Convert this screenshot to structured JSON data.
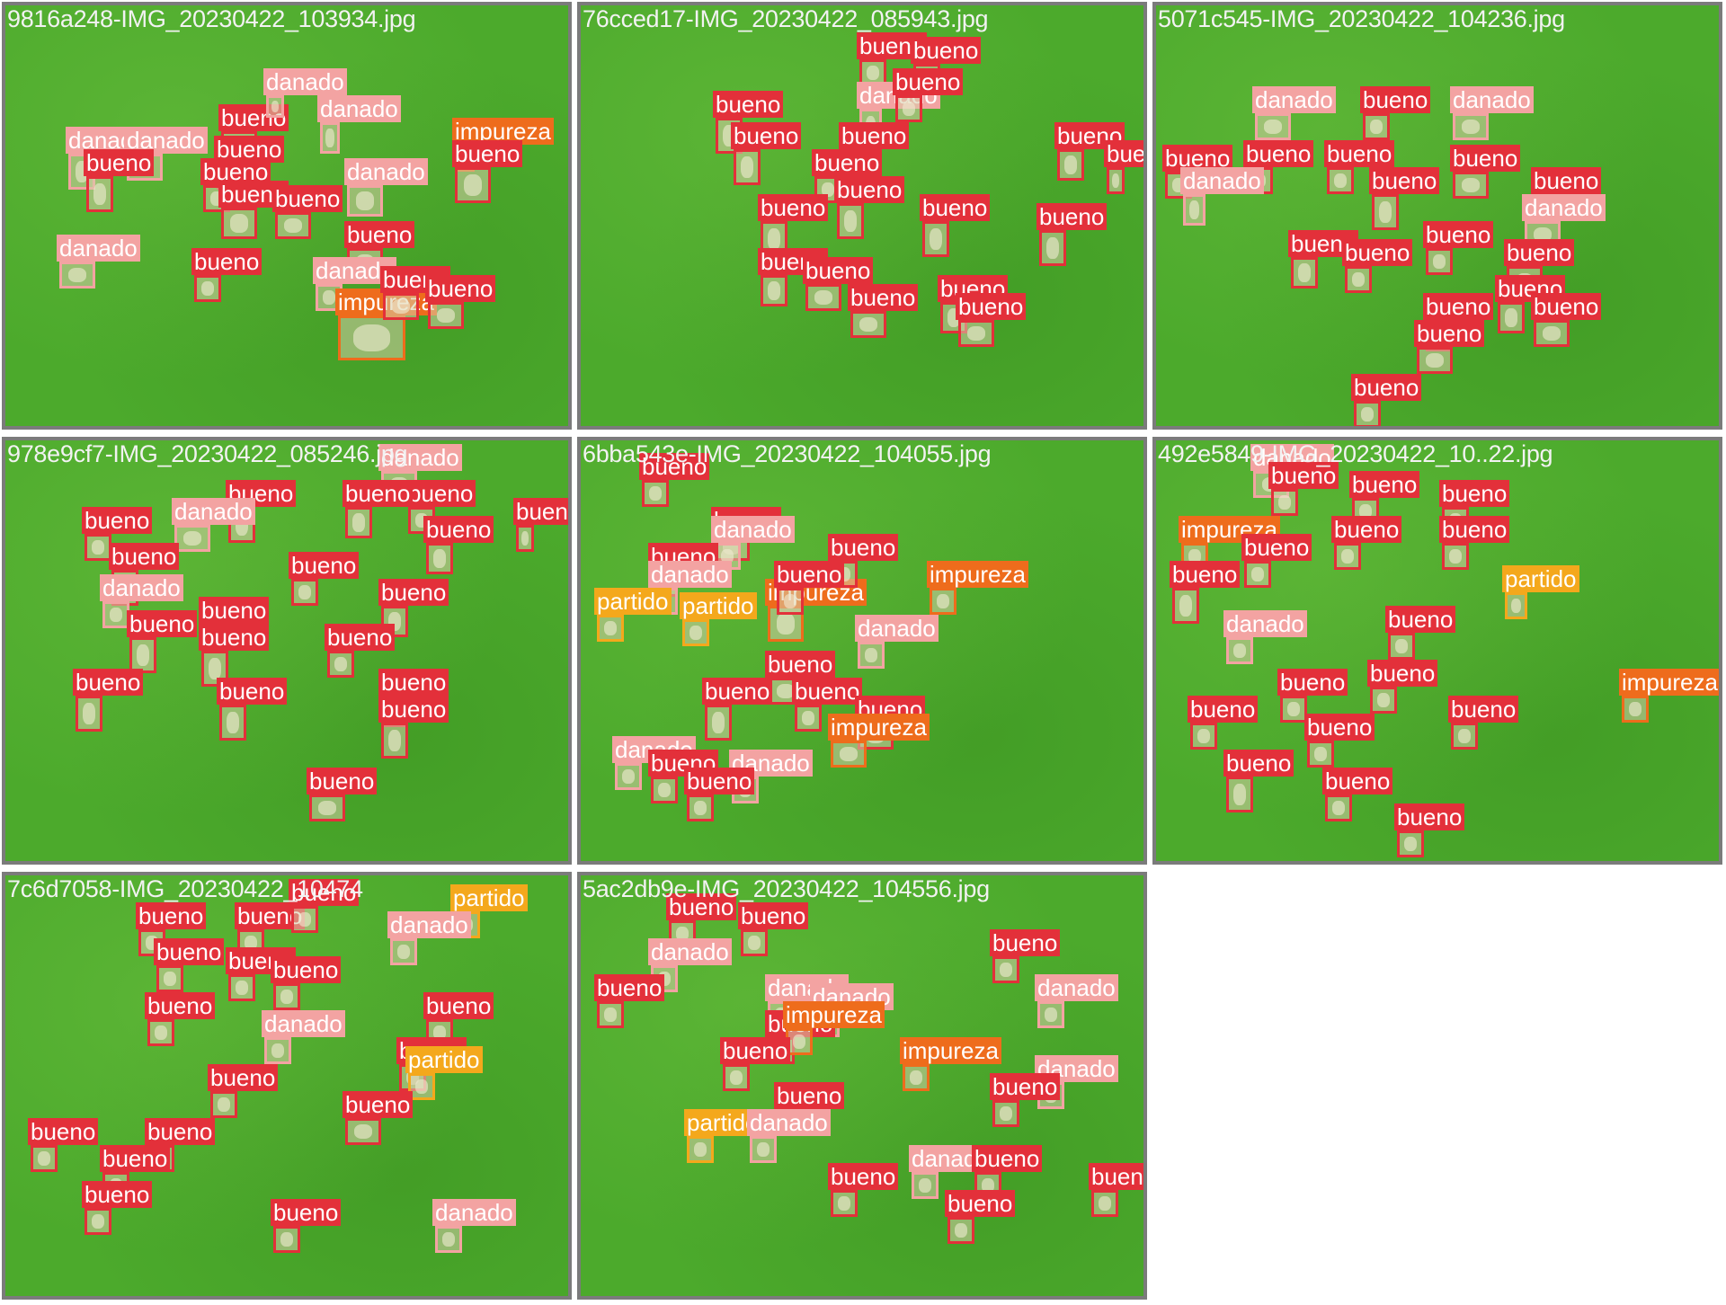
{
  "class_colors": {
    "bueno": "#e3303a",
    "danado": "#f3a3a2",
    "impureza": "#ee6c1c",
    "partido": "#f4a81c"
  },
  "tiles": [
    {
      "title": "9816a248-IMG_20230422_103934.jpg",
      "detections": [
        {
          "label": "danado",
          "cls": "danado"
        },
        {
          "label": "danado",
          "cls": "danado"
        },
        {
          "label": "bueno",
          "cls": "bueno"
        },
        {
          "label": "danado",
          "cls": "danado"
        },
        {
          "label": "danado",
          "cls": "danado"
        },
        {
          "label": "impureza",
          "cls": "impureza"
        },
        {
          "label": "bueno",
          "cls": "bueno"
        },
        {
          "label": "bueno",
          "cls": "bueno"
        },
        {
          "label": "bueno",
          "cls": "bueno"
        },
        {
          "label": "danado",
          "cls": "danado"
        },
        {
          "label": "bueno",
          "cls": "bueno"
        },
        {
          "label": "bueno",
          "cls": "bueno"
        },
        {
          "label": "bueno",
          "cls": "bueno"
        },
        {
          "label": "danado",
          "cls": "danado"
        },
        {
          "label": "bueno",
          "cls": "bueno"
        },
        {
          "label": "bueno",
          "cls": "bueno"
        },
        {
          "label": "danado",
          "cls": "danado"
        },
        {
          "label": "impureza",
          "cls": "impureza"
        },
        {
          "label": "bueno",
          "cls": "bueno"
        },
        {
          "label": "bueno",
          "cls": "bueno"
        }
      ]
    },
    {
      "title": "76cced17-IMG_20230422_085943.jpg",
      "detections": [
        {
          "label": "bueno",
          "cls": "bueno"
        },
        {
          "label": "bueno",
          "cls": "bueno"
        },
        {
          "label": "danado",
          "cls": "danado"
        },
        {
          "label": "bueno",
          "cls": "bueno"
        },
        {
          "label": "bueno",
          "cls": "bueno"
        },
        {
          "label": "bueno",
          "cls": "bueno"
        },
        {
          "label": "bueno",
          "cls": "bueno"
        },
        {
          "label": "bueno",
          "cls": "bueno"
        },
        {
          "label": "bueno",
          "cls": "bueno"
        },
        {
          "label": "bueno",
          "cls": "bueno"
        },
        {
          "label": "bueno",
          "cls": "bueno"
        },
        {
          "label": "bueno",
          "cls": "bueno"
        },
        {
          "label": "bueno",
          "cls": "bueno"
        },
        {
          "label": "bueno",
          "cls": "bueno"
        },
        {
          "label": "bueno",
          "cls": "bueno"
        },
        {
          "label": "bueno",
          "cls": "bueno"
        },
        {
          "label": "bueno",
          "cls": "bueno"
        },
        {
          "label": "bueno",
          "cls": "bueno"
        },
        {
          "label": "bueno",
          "cls": "bueno"
        }
      ]
    },
    {
      "title": "5071c545-IMG_20230422_104236.jpg",
      "detections": [
        {
          "label": "danado",
          "cls": "danado"
        },
        {
          "label": "bueno",
          "cls": "bueno"
        },
        {
          "label": "danado",
          "cls": "danado"
        },
        {
          "label": "bueno",
          "cls": "bueno"
        },
        {
          "label": "bueno",
          "cls": "bueno"
        },
        {
          "label": "bueno",
          "cls": "bueno"
        },
        {
          "label": "bueno",
          "cls": "bueno"
        },
        {
          "label": "bueno",
          "cls": "bueno"
        },
        {
          "label": "bueno",
          "cls": "bueno"
        },
        {
          "label": "danado",
          "cls": "danado"
        },
        {
          "label": "danado",
          "cls": "danado"
        },
        {
          "label": "bueno",
          "cls": "bueno"
        },
        {
          "label": "bueno",
          "cls": "bueno"
        },
        {
          "label": "bueno",
          "cls": "bueno"
        },
        {
          "label": "bueno",
          "cls": "bueno"
        },
        {
          "label": "bueno",
          "cls": "bueno"
        },
        {
          "label": "bueno",
          "cls": "bueno"
        },
        {
          "label": "bueno",
          "cls": "bueno"
        },
        {
          "label": "bueno",
          "cls": "bueno"
        },
        {
          "label": "bueno",
          "cls": "bueno"
        }
      ]
    },
    {
      "title": "978e9cf7-IMG_20230422_085246.jpg",
      "detections": [
        {
          "label": "danado",
          "cls": "danado"
        },
        {
          "label": "bueno",
          "cls": "bueno"
        },
        {
          "label": "bueno",
          "cls": "bueno"
        },
        {
          "label": "bueno",
          "cls": "bueno"
        },
        {
          "label": "danado",
          "cls": "danado"
        },
        {
          "label": "bueno",
          "cls": "bueno"
        },
        {
          "label": "bueno",
          "cls": "bueno"
        },
        {
          "label": "bueno",
          "cls": "bueno"
        },
        {
          "label": "bueno",
          "cls": "bueno"
        },
        {
          "label": "bueno",
          "cls": "bueno"
        },
        {
          "label": "danado",
          "cls": "danado"
        },
        {
          "label": "bueno",
          "cls": "bueno"
        },
        {
          "label": "bueno",
          "cls": "bueno"
        },
        {
          "label": "bueno",
          "cls": "bueno"
        },
        {
          "label": "bueno",
          "cls": "bueno"
        },
        {
          "label": "bueno",
          "cls": "bueno"
        },
        {
          "label": "bueno",
          "cls": "bueno"
        },
        {
          "label": "bueno",
          "cls": "bueno"
        },
        {
          "label": "bueno",
          "cls": "bueno"
        },
        {
          "label": "bueno",
          "cls": "bueno"
        },
        {
          "label": "bueno",
          "cls": "bueno"
        }
      ]
    },
    {
      "title": "6bba543e-IMG_20230422_104055.jpg",
      "detections": [
        {
          "label": "bueno",
          "cls": "bueno"
        },
        {
          "label": "bueno",
          "cls": "bueno"
        },
        {
          "label": "danado",
          "cls": "danado"
        },
        {
          "label": "bueno",
          "cls": "bueno"
        },
        {
          "label": "danado",
          "cls": "danado"
        },
        {
          "label": "impureza",
          "cls": "impureza"
        },
        {
          "label": "partido",
          "cls": "partido"
        },
        {
          "label": "partido",
          "cls": "partido"
        },
        {
          "label": "bueno",
          "cls": "bueno"
        },
        {
          "label": "bueno",
          "cls": "bueno"
        },
        {
          "label": "impureza",
          "cls": "impureza"
        },
        {
          "label": "danado",
          "cls": "danado"
        },
        {
          "label": "bueno",
          "cls": "bueno"
        },
        {
          "label": "bueno",
          "cls": "bueno"
        },
        {
          "label": "bueno",
          "cls": "bueno"
        },
        {
          "label": "bueno",
          "cls": "bueno"
        },
        {
          "label": "impureza",
          "cls": "impureza"
        },
        {
          "label": "danado",
          "cls": "danado"
        },
        {
          "label": "bueno",
          "cls": "bueno"
        },
        {
          "label": "danado",
          "cls": "danado"
        },
        {
          "label": "bueno",
          "cls": "bueno"
        }
      ]
    },
    {
      "title": "492e5849-IMG_20230422_10..22.jpg",
      "detections": [
        {
          "label": "danado",
          "cls": "danado"
        },
        {
          "label": "bueno",
          "cls": "bueno"
        },
        {
          "label": "bueno",
          "cls": "bueno"
        },
        {
          "label": "bueno",
          "cls": "bueno"
        },
        {
          "label": "impureza",
          "cls": "impureza"
        },
        {
          "label": "bueno",
          "cls": "bueno"
        },
        {
          "label": "bueno",
          "cls": "bueno"
        },
        {
          "label": "bueno",
          "cls": "bueno"
        },
        {
          "label": "partido",
          "cls": "partido"
        },
        {
          "label": "bueno",
          "cls": "bueno"
        },
        {
          "label": "bueno",
          "cls": "bueno"
        },
        {
          "label": "danado",
          "cls": "danado"
        },
        {
          "label": "bueno",
          "cls": "bueno"
        },
        {
          "label": "bueno",
          "cls": "bueno"
        },
        {
          "label": "impureza",
          "cls": "impureza"
        },
        {
          "label": "bueno",
          "cls": "bueno"
        },
        {
          "label": "bueno",
          "cls": "bueno"
        },
        {
          "label": "bueno",
          "cls": "bueno"
        },
        {
          "label": "bueno",
          "cls": "bueno"
        },
        {
          "label": "bueno",
          "cls": "bueno"
        },
        {
          "label": "bueno",
          "cls": "bueno"
        }
      ]
    },
    {
      "title": "7c6d7058-IMG_20230422_10474",
      "detections": [
        {
          "label": "bueno",
          "cls": "bueno"
        },
        {
          "label": "bueno",
          "cls": "bueno"
        },
        {
          "label": "bueno",
          "cls": "bueno"
        },
        {
          "label": "partido",
          "cls": "partido"
        },
        {
          "label": "bueno",
          "cls": "bueno"
        },
        {
          "label": "bueno",
          "cls": "bueno"
        },
        {
          "label": "bueno",
          "cls": "bueno"
        },
        {
          "label": "danado",
          "cls": "danado"
        },
        {
          "label": "bueno",
          "cls": "bueno"
        },
        {
          "label": "bueno",
          "cls": "bueno"
        },
        {
          "label": "danado",
          "cls": "danado"
        },
        {
          "label": "bueno",
          "cls": "bueno"
        },
        {
          "label": "partido",
          "cls": "partido"
        },
        {
          "label": "bueno",
          "cls": "bueno"
        },
        {
          "label": "bueno",
          "cls": "bueno"
        },
        {
          "label": "bueno",
          "cls": "bueno"
        },
        {
          "label": "bueno",
          "cls": "bueno"
        },
        {
          "label": "bueno",
          "cls": "bueno"
        },
        {
          "label": "bueno",
          "cls": "bueno"
        },
        {
          "label": "bueno",
          "cls": "bueno"
        },
        {
          "label": "danado",
          "cls": "danado"
        }
      ]
    },
    {
      "title": "5ac2db9e-IMG_20230422_104556.jpg",
      "detections": [
        {
          "label": "bueno",
          "cls": "bueno"
        },
        {
          "label": "bueno",
          "cls": "bueno"
        },
        {
          "label": "danado",
          "cls": "danado"
        },
        {
          "label": "bueno",
          "cls": "bueno"
        },
        {
          "label": "bueno",
          "cls": "bueno"
        },
        {
          "label": "danado",
          "cls": "danado"
        },
        {
          "label": "danado",
          "cls": "danado"
        },
        {
          "label": "bueno",
          "cls": "bueno"
        },
        {
          "label": "impureza",
          "cls": "impureza"
        },
        {
          "label": "danado",
          "cls": "danado"
        },
        {
          "label": "bueno",
          "cls": "bueno"
        },
        {
          "label": "impureza",
          "cls": "impureza"
        },
        {
          "label": "danado",
          "cls": "danado"
        },
        {
          "label": "bueno",
          "cls": "bueno"
        },
        {
          "label": "bueno",
          "cls": "bueno"
        },
        {
          "label": "partido",
          "cls": "partido"
        },
        {
          "label": "danado",
          "cls": "danado"
        },
        {
          "label": "danado",
          "cls": "danado"
        },
        {
          "label": "bueno",
          "cls": "bueno"
        },
        {
          "label": "bueno",
          "cls": "bueno"
        },
        {
          "label": "bueno",
          "cls": "bueno"
        },
        {
          "label": "bueno",
          "cls": "bueno"
        }
      ]
    }
  ]
}
